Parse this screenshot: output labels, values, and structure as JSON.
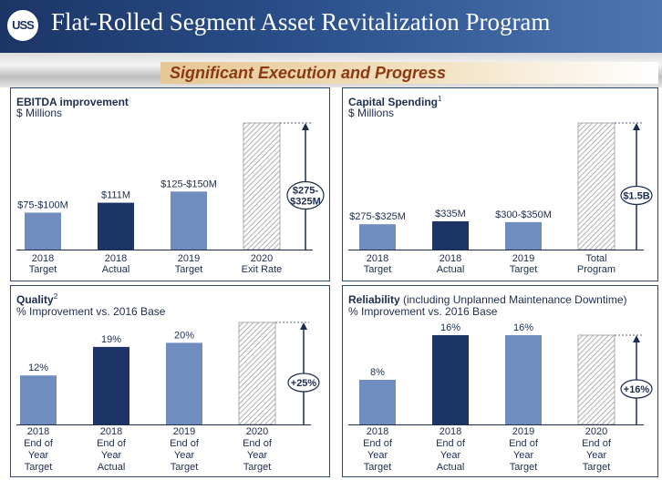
{
  "header": {
    "logo_text": "USS",
    "title": "Flat-Rolled Segment Asset Revitalization Program",
    "subtitle": "Significant Execution and Progress"
  },
  "colors": {
    "navy": "#1c3566",
    "light_bar": "#6f8dbf",
    "dark_bar": "#1c3566",
    "border": "#2b4a78",
    "subtitle_text": "#8a3a13"
  },
  "chart_data": [
    {
      "type": "bar",
      "title": "EBITDA improvement",
      "title_suffix": "",
      "superscript": "",
      "subtitle": "$ Millions",
      "categories": [
        [
          "2018",
          "Target"
        ],
        [
          "2018",
          "Actual"
        ],
        [
          "2019",
          "Target"
        ],
        [
          "2020",
          "Exit  Rate"
        ]
      ],
      "values": [
        87.5,
        111,
        137.5,
        300
      ],
      "data_labels": [
        "$75-$100M",
        "$111M",
        "$125-$150M",
        ""
      ],
      "styles": [
        "light",
        "dark",
        "light",
        "hatched"
      ],
      "ylim": [
        0,
        300
      ],
      "arrow_label": [
        "$275-",
        "$325M"
      ]
    },
    {
      "type": "bar",
      "title": "Capital Spending",
      "title_suffix": "",
      "superscript": "1",
      "subtitle": "$ Millions",
      "categories": [
        [
          "2018",
          "Target"
        ],
        [
          "2018",
          "Actual"
        ],
        [
          "2019",
          "Target"
        ],
        [
          "Total",
          "Program"
        ]
      ],
      "values": [
        300,
        335,
        325,
        1500
      ],
      "data_labels": [
        "$275-$325M",
        "$335M",
        "$300-$350M",
        ""
      ],
      "styles": [
        "light",
        "dark",
        "light",
        "hatched"
      ],
      "ylim": [
        0,
        1500
      ],
      "arrow_label": [
        "$1.5B"
      ]
    },
    {
      "type": "bar",
      "title": "Quality",
      "title_suffix": "",
      "superscript": "2",
      "subtitle": "% Improvement vs. 2016 Base",
      "categories": [
        [
          "2018",
          "End of",
          "Year",
          "Target"
        ],
        [
          "2018",
          "End of",
          "Year",
          "Actual"
        ],
        [
          "2019",
          "End of",
          "Year",
          "Target"
        ],
        [
          "2020",
          "End of",
          "Year",
          "Target"
        ]
      ],
      "values": [
        12,
        19,
        20,
        25
      ],
      "data_labels": [
        "12%",
        "19%",
        "20%",
        ""
      ],
      "styles": [
        "light",
        "dark",
        "light",
        "hatched"
      ],
      "ylim": [
        0,
        25
      ],
      "arrow_label": [
        "+25%"
      ]
    },
    {
      "type": "bar",
      "title": "Reliability",
      "title_suffix": " (including Unplanned Maintenance Downtime)",
      "superscript": "",
      "subtitle": "% Improvement vs. 2016 Base",
      "categories": [
        [
          "2018",
          "End of",
          "Year",
          "Target"
        ],
        [
          "2018",
          "End of",
          "Year",
          "Actual"
        ],
        [
          "2019",
          "End of",
          "Year",
          "Target"
        ],
        [
          "2020",
          "End of",
          "Year",
          "Target"
        ]
      ],
      "values": [
        8,
        16,
        16,
        16
      ],
      "data_labels": [
        "8%",
        "16%",
        "16%",
        ""
      ],
      "styles": [
        "light",
        "dark",
        "light",
        "hatched"
      ],
      "ylim": [
        0,
        16
      ],
      "arrow_label": [
        "+16%"
      ]
    }
  ]
}
